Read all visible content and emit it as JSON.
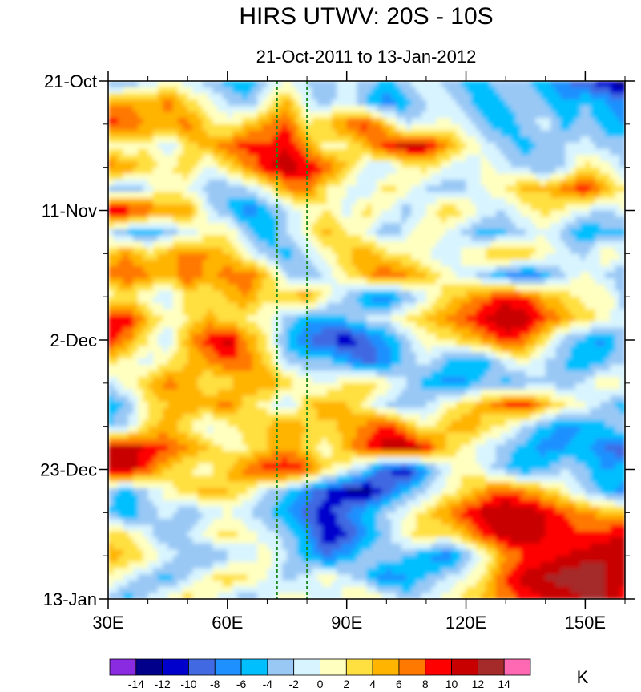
{
  "chart_data": {
    "type": "heatmap",
    "title": "HIRS UTWV: 20S - 10S",
    "subtitle": "21-Oct-2011 to 13-Jan-2012",
    "x_axis": {
      "range": [
        30,
        160
      ],
      "ticks": [
        {
          "value": 30,
          "label": "30E"
        },
        {
          "value": 60,
          "label": "60E"
        },
        {
          "value": 90,
          "label": "90E"
        },
        {
          "value": 120,
          "label": "120E"
        },
        {
          "value": 150,
          "label": "150E"
        }
      ],
      "minor_step": 10
    },
    "y_axis": {
      "range_days": [
        0,
        84
      ],
      "direction": "down",
      "ticks": [
        {
          "value": 0,
          "label": "21-Oct"
        },
        {
          "value": 21,
          "label": "11-Nov"
        },
        {
          "value": 42,
          "label": "2-Dec"
        },
        {
          "value": 63,
          "label": "23-Dec"
        },
        {
          "value": 84,
          "label": "13-Jan"
        }
      ],
      "minor_step": 7
    },
    "reference_lines_lon": [
      72.5,
      80
    ],
    "reference_line_color": "#1a8a1a",
    "colorbar": {
      "unit": "K",
      "levels": [
        -14,
        -12,
        -10,
        -8,
        -6,
        -4,
        -2,
        0,
        2,
        4,
        6,
        8,
        10,
        12,
        14
      ],
      "labels": [
        "-14",
        "-12",
        "-10",
        "-8",
        "-6",
        "-4",
        "-2",
        "0",
        "2",
        "4",
        "6",
        "8",
        "10",
        "12",
        "14"
      ],
      "colors": [
        "#8a2be2",
        "#00008b",
        "#0000cd",
        "#4169e1",
        "#1e90ff",
        "#00bfff",
        "#9ac8f5",
        "#d8f4ff",
        "#ffffc0",
        "#ffe040",
        "#ffb400",
        "#ff7800",
        "#ff0000",
        "#c80000",
        "#a52a2a",
        "#ff69b4"
      ]
    },
    "grid": {
      "lons": [
        30,
        35,
        40,
        45,
        50,
        55,
        60,
        65,
        70,
        75,
        80,
        85,
        90,
        95,
        100,
        105,
        110,
        115,
        120,
        125,
        130,
        135,
        140,
        145,
        150,
        155,
        160
      ],
      "days": [
        0,
        3.5,
        7,
        10.5,
        14,
        17.5,
        21,
        24.5,
        28,
        31.5,
        35,
        38.5,
        42,
        45.5,
        49,
        52.5,
        56,
        59.5,
        63,
        66.5,
        70,
        73.5,
        77,
        80.5,
        84
      ],
      "values": [
        [
          -5,
          -4,
          -2,
          1,
          -1,
          -3,
          -5,
          -6,
          -2,
          0,
          -2,
          -4,
          -1,
          -3,
          -5,
          -2,
          0,
          -3,
          -5,
          -4,
          -2,
          -4,
          -6,
          -8,
          -10,
          -12,
          -14
        ],
        [
          5,
          6,
          4,
          7,
          3,
          1,
          -2,
          -4,
          1,
          5,
          -1,
          -3,
          0,
          -4,
          -7,
          -5,
          -2,
          -1,
          -3,
          -6,
          -4,
          -2,
          -4,
          -6,
          -4,
          -6,
          -8
        ],
        [
          9,
          8,
          6,
          5,
          7,
          3,
          1,
          4,
          6,
          8,
          2,
          4,
          7,
          9,
          4,
          -2,
          -1,
          1,
          -1,
          -4,
          -6,
          -3,
          -1,
          -5,
          -3,
          -5,
          -6
        ],
        [
          1,
          0,
          2,
          -2,
          3,
          5,
          7,
          9,
          8,
          10,
          6,
          1,
          2,
          5,
          9,
          11,
          10,
          6,
          2,
          -1,
          -3,
          -5,
          -3,
          -2,
          -1,
          -3,
          -2
        ],
        [
          7,
          6,
          3,
          1,
          4,
          -1,
          3,
          6,
          10,
          11,
          10,
          8,
          4,
          -1,
          -2,
          1,
          3,
          0,
          -2,
          1,
          -1,
          -3,
          -4,
          -2,
          3,
          1,
          -3
        ],
        [
          -2,
          -4,
          -1,
          2,
          0,
          -3,
          -4,
          -2,
          1,
          6,
          7,
          2,
          0,
          -2,
          3,
          1,
          -2,
          -4,
          -2,
          0,
          2,
          5,
          4,
          7,
          9,
          5,
          2
        ],
        [
          11,
          10,
          8,
          5,
          6,
          -1,
          -4,
          -8,
          -5,
          -2,
          1,
          2,
          -1,
          3,
          0,
          -3,
          0,
          4,
          2,
          -1,
          -2,
          1,
          3,
          1,
          -1,
          -3,
          0
        ],
        [
          -1,
          -4,
          -6,
          -3,
          -1,
          1,
          2,
          -3,
          -6,
          -2,
          1,
          5,
          2,
          0,
          -4,
          -1,
          2,
          0,
          -3,
          -5,
          -4,
          -2,
          0,
          -3,
          -6,
          -4,
          -5
        ],
        [
          4,
          6,
          3,
          5,
          7,
          6,
          4,
          0,
          -3,
          -5,
          -2,
          1,
          4,
          6,
          3,
          2,
          0,
          -2,
          1,
          3,
          5,
          4,
          1,
          -1,
          -3,
          2,
          0
        ],
        [
          7,
          8,
          6,
          4,
          8,
          5,
          7,
          8,
          4,
          -2,
          -4,
          -1,
          2,
          5,
          8,
          6,
          4,
          1,
          -1,
          -3,
          -6,
          -8,
          -5,
          -2,
          1,
          -2,
          -4
        ],
        [
          1,
          2,
          0,
          -2,
          3,
          2,
          4,
          6,
          2,
          4,
          6,
          1,
          -3,
          -6,
          -8,
          -4,
          -1,
          3,
          5,
          7,
          9,
          8,
          5,
          3,
          1,
          2,
          -3
        ],
        [
          9,
          10,
          4,
          1,
          2,
          5,
          3,
          2,
          1,
          -3,
          -5,
          -6,
          -4,
          -2,
          -1,
          2,
          4,
          6,
          8,
          10,
          12,
          11,
          8,
          5,
          3,
          1,
          -2
        ],
        [
          10,
          6,
          2,
          -2,
          5,
          9,
          11,
          6,
          2,
          -5,
          -8,
          -10,
          -12,
          -9,
          -6,
          -3,
          1,
          2,
          4,
          6,
          9,
          7,
          2,
          -3,
          -5,
          -7,
          -2
        ],
        [
          3,
          1,
          -1,
          2,
          4,
          6,
          8,
          7,
          3,
          -2,
          -4,
          -3,
          -6,
          -9,
          -7,
          -3,
          -1,
          -4,
          -6,
          -5,
          -1,
          1,
          -2,
          -4,
          -6,
          -4,
          -2
        ],
        [
          -2,
          1,
          4,
          7,
          5,
          2,
          3,
          5,
          6,
          3,
          1,
          -1,
          2,
          4,
          1,
          -2,
          -5,
          -7,
          -6,
          -3,
          -5,
          -4,
          -2,
          -4,
          -1,
          2,
          0
        ],
        [
          -6,
          -3,
          2,
          4,
          6,
          5,
          7,
          3,
          1,
          -2,
          3,
          6,
          4,
          1,
          -2,
          -4,
          -2,
          1,
          3,
          5,
          8,
          9,
          5,
          2,
          0,
          -3,
          -5
        ],
        [
          -4,
          -2,
          3,
          5,
          2,
          -1,
          1,
          3,
          4,
          6,
          4,
          3,
          5,
          7,
          9,
          5,
          1,
          4,
          6,
          3,
          1,
          -2,
          -5,
          -7,
          -6,
          -4,
          -2
        ],
        [
          11,
          12,
          9,
          8,
          6,
          4,
          1,
          2,
          4,
          6,
          3,
          1,
          5,
          8,
          11,
          12,
          9,
          4,
          1,
          -1,
          -3,
          -5,
          -7,
          -6,
          -5,
          -8,
          -10
        ],
        [
          10,
          11,
          8,
          4,
          2,
          1,
          4,
          7,
          9,
          10,
          8,
          3,
          0,
          -4,
          -10,
          -12,
          -6,
          -1,
          2,
          -1,
          -4,
          -6,
          -4,
          -2,
          -4,
          -6,
          -5
        ],
        [
          -3,
          -5,
          -2,
          1,
          3,
          5,
          4,
          2,
          -2,
          -4,
          -7,
          -10,
          -12,
          -13,
          -9,
          -5,
          -2,
          1,
          3,
          6,
          8,
          6,
          4,
          1,
          -2,
          -5,
          -7
        ],
        [
          -4,
          -6,
          -3,
          -1,
          -4,
          -2,
          0,
          -2,
          -4,
          -6,
          -9,
          -11,
          -8,
          -5,
          -2,
          0,
          3,
          6,
          9,
          11,
          12,
          12,
          10,
          8,
          6,
          5,
          4
        ],
        [
          3,
          2,
          -1,
          -4,
          -2,
          1,
          3,
          1,
          -1,
          -3,
          -6,
          -12,
          -10,
          -6,
          -3,
          1,
          4,
          2,
          5,
          9,
          11,
          12,
          10,
          9,
          8,
          9,
          10
        ],
        [
          5,
          4,
          2,
          -1,
          -3,
          -5,
          -3,
          -1,
          1,
          -2,
          -5,
          -8,
          -6,
          -3,
          -2,
          -4,
          -6,
          -8,
          -4,
          1,
          6,
          8,
          9,
          10,
          11,
          12,
          11
        ],
        [
          2,
          -1,
          -3,
          -5,
          -2,
          1,
          4,
          2,
          0,
          -3,
          -1,
          1,
          -1,
          -4,
          -8,
          -6,
          -4,
          -2,
          0,
          3,
          8,
          11,
          12,
          13,
          14,
          12,
          10
        ],
        [
          -3,
          -5,
          -2,
          1,
          3,
          1,
          -2,
          -4,
          -1,
          2,
          0,
          -2,
          1,
          3,
          0,
          -3,
          -1,
          1,
          3,
          5,
          7,
          9,
          10,
          11,
          12,
          12,
          9
        ]
      ]
    }
  }
}
